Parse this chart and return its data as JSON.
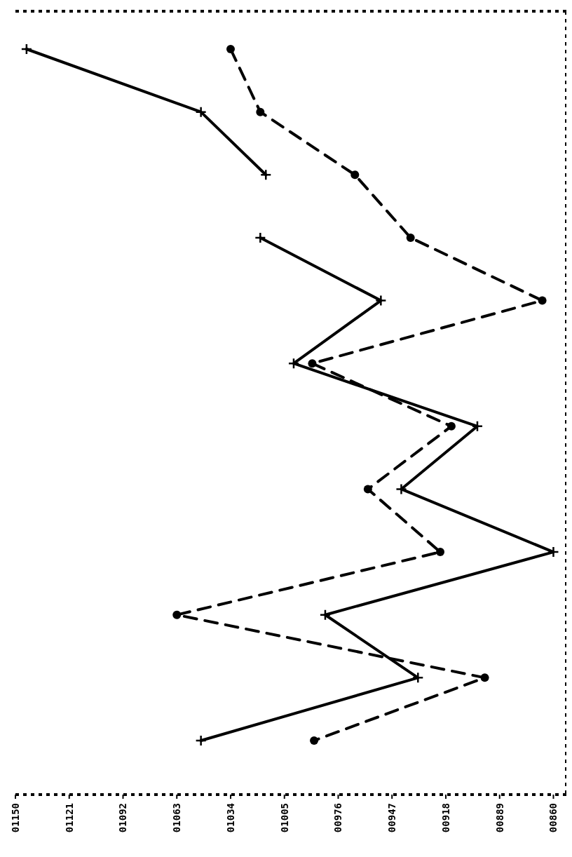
{
  "chart_data": {
    "type": "line",
    "orientation": "horizontal",
    "categories": [
      null,
      null,
      null,
      null,
      null,
      null,
      null,
      null,
      null,
      null,
      null,
      null
    ],
    "xlim": [
      1150,
      853
    ],
    "xticks": [
      {
        "value": 1150,
        "label": "01150"
      },
      {
        "value": 1121,
        "label": "01121"
      },
      {
        "value": 1092,
        "label": "01092"
      },
      {
        "value": 1063,
        "label": "01063"
      },
      {
        "value": 1034,
        "label": "01034"
      },
      {
        "value": 1005,
        "label": "01005"
      },
      {
        "value": 976,
        "label": "00976"
      },
      {
        "value": 947,
        "label": "00947"
      },
      {
        "value": 918,
        "label": "00918"
      },
      {
        "value": 889,
        "label": "00889"
      },
      {
        "value": 860,
        "label": "00860"
      }
    ],
    "tick_labels": "x",
    "grid": false,
    "series": [
      {
        "color": "#000000",
        "marker": "cross",
        "line_style": "solid",
        "values": [
          1144,
          1050,
          1015,
          null,
          null,
          null,
          null,
          null,
          null,
          null,
          null,
          null
        ]
      },
      {
        "color": "#000000",
        "marker": "cross",
        "line_style": "solid",
        "values": [
          null,
          null,
          null,
          1018,
          953,
          1000,
          901,
          942,
          860,
          983,
          933,
          1050
        ]
      },
      {
        "color": "#000000",
        "marker": "circle",
        "line_style": "dashed",
        "values": [
          1034,
          1018,
          967,
          937,
          866,
          990,
          915,
          960,
          921,
          1063,
          897,
          989
        ]
      }
    ]
  }
}
